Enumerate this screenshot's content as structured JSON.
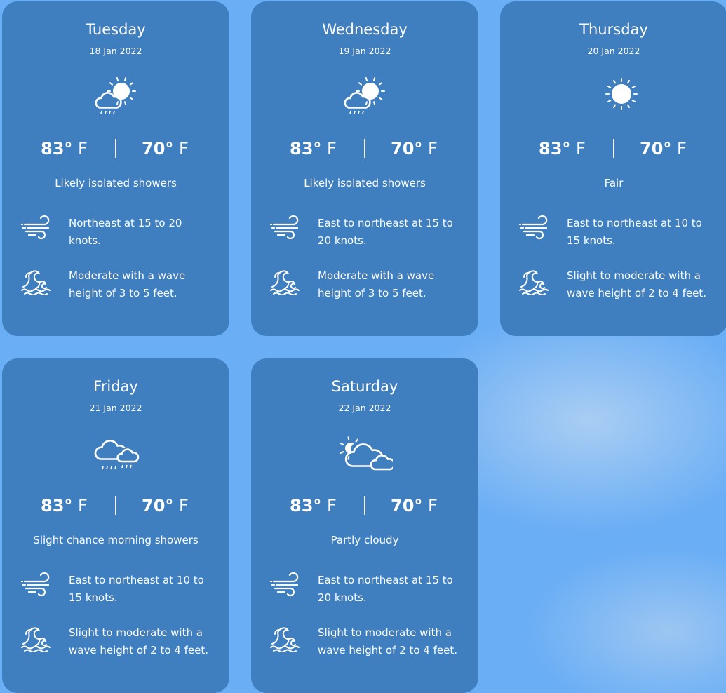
{
  "colors": {
    "background": "#6aaef5",
    "card": "#3f7fc0",
    "text": "#ffffff"
  },
  "forecast": [
    {
      "day": "Tuesday",
      "date": "18 Jan 2022",
      "icon": "sun-cloud-rain-icon",
      "high": "83°",
      "low": "70°",
      "unit": "F",
      "condition": "Likely isolated showers",
      "wind": "Northeast at 15 to 20 knots.",
      "waves": "Moderate with a wave height of 3 to 5 feet."
    },
    {
      "day": "Wednesday",
      "date": "19 Jan 2022",
      "icon": "sun-cloud-rain-icon",
      "high": "83°",
      "low": "70°",
      "unit": "F",
      "condition": "Likely isolated showers",
      "wind": "East to northeast at 15 to 20 knots.",
      "waves": "Moderate with a wave height of 3 to 5 feet."
    },
    {
      "day": "Thursday",
      "date": "20 Jan 2022",
      "icon": "sun-icon",
      "high": "83°",
      "low": "70°",
      "unit": "F",
      "condition": "Fair",
      "wind": "East to northeast at 10 to 15 knots.",
      "waves": "Slight to moderate with a wave height of 2 to 4 feet."
    },
    {
      "day": "Friday",
      "date": "21 Jan 2022",
      "icon": "clouds-rain-icon",
      "high": "83°",
      "low": "70°",
      "unit": "F",
      "condition": "Slight chance morning showers",
      "wind": "East to northeast at 10 to 15 knots.",
      "waves": "Slight to moderate with a wave height of 2 to 4 feet."
    },
    {
      "day": "Saturday",
      "date": "22 Jan 2022",
      "icon": "partly-cloudy-icon",
      "high": "83°",
      "low": "70°",
      "unit": "F",
      "condition": "Partly cloudy",
      "wind": "East to northeast at 15 to 20 knots.",
      "waves": "Slight to moderate with a wave height of 2 to 4 feet."
    }
  ]
}
